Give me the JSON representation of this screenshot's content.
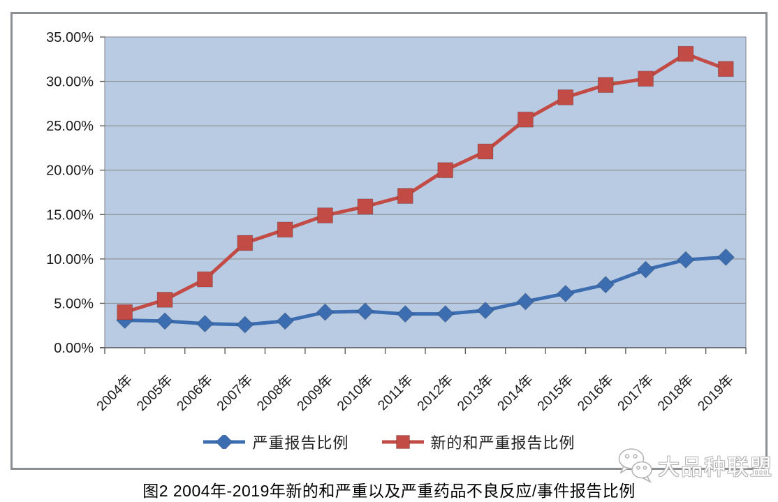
{
  "page": {
    "caption": "图2 2004年-2019年新的和严重以及严重药品不良反应/事件报告比例"
  },
  "watermark": {
    "icon": "wechat-icon",
    "text": "大品种联盟"
  },
  "chart_data": {
    "type": "line",
    "title": "图2 2004年-2019年新的和严重以及严重药品不良反应/事件报告比例",
    "categories": [
      "2004年",
      "2005年",
      "2006年",
      "2007年",
      "2008年",
      "2009年",
      "2010年",
      "2011年",
      "2012年",
      "2013年",
      "2014年",
      "2015年",
      "2016年",
      "2017年",
      "2018年",
      "2019年"
    ],
    "series": [
      {
        "name": "严重报告比例",
        "marker": "diamond",
        "color": "#3C6DB0",
        "values": [
          3.1,
          3.0,
          2.7,
          2.6,
          3.0,
          4.0,
          4.1,
          3.8,
          3.8,
          4.2,
          5.2,
          6.1,
          7.1,
          8.8,
          9.9,
          10.2
        ]
      },
      {
        "name": "新的和严重报告比例",
        "marker": "square",
        "color": "#C24B45",
        "values": [
          4.0,
          5.4,
          7.7,
          11.8,
          13.3,
          14.9,
          15.9,
          17.1,
          20.0,
          22.1,
          25.7,
          28.2,
          29.6,
          30.3,
          33.1,
          31.4
        ]
      }
    ],
    "xlabel": "",
    "ylabel": "",
    "ylim": [
      0,
      35
    ],
    "y_tick_step": 5,
    "y_tick_labels": [
      "0.00%",
      "5.00%",
      "10.00%",
      "15.00%",
      "20.00%",
      "25.00%",
      "30.00%",
      "35.00%"
    ],
    "x_label_rotation": -45,
    "grid": true,
    "legend_position": "bottom",
    "colors": {
      "plot_background": "#B9CBE2",
      "gridline": "#8f949a",
      "plot_border": "#8f949a",
      "axis_line": "#6f7478",
      "tick": "#5a5e62",
      "tick_label": "#1c1c1c",
      "frame_border": "#8b8f93"
    }
  }
}
